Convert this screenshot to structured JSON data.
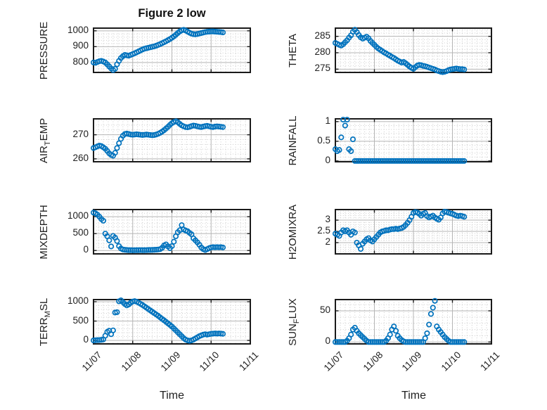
{
  "title": "Figure 2 low",
  "xlabel": "Time",
  "colors": {
    "marker": "#0072BD",
    "grid_major": "#b5b5b5",
    "grid_minor": "#cccccc",
    "axis": "#1a1a1a",
    "text": "#212121"
  },
  "chart_data": [
    {
      "type": "scatter",
      "name": "pressure",
      "marker": "open-circle",
      "ylabel_pre": "PRESSURE",
      "ylabel_sub": "",
      "ylabel_post": "",
      "ylim": [
        737,
        1017
      ],
      "yticks": [
        800,
        900,
        1000
      ],
      "minor_y_step": 20,
      "xlim": [
        0,
        4
      ],
      "xticks": [
        0,
        1,
        2,
        3,
        4
      ],
      "minor_x_step": 0.125,
      "xtick_labels": [
        "11/07",
        "11/08",
        "11/09",
        "11/10",
        "11/11"
      ],
      "show_x_tick_labels": false,
      "x": {
        "t0": 0,
        "dt": 0.05
      },
      "values": [
        800,
        798,
        803,
        808,
        810,
        806,
        800,
        788,
        775,
        762,
        752,
        760,
        788,
        810,
        828,
        840,
        848,
        845,
        843,
        848,
        853,
        858,
        864,
        870,
        876,
        882,
        887,
        890,
        893,
        896,
        899,
        902,
        906,
        911,
        916,
        922,
        928,
        934,
        941,
        948,
        956,
        965,
        975,
        986,
        996,
        1003,
        1006,
        1002,
        995,
        988,
        982,
        979,
        978,
        980,
        983,
        986,
        989,
        992,
        994,
        995,
        996,
        996,
        995,
        994,
        993,
        992,
        990
      ]
    },
    {
      "type": "scatter",
      "name": "theta",
      "marker": "open-circle",
      "ylabel_pre": "THETA",
      "ylabel_sub": "",
      "ylabel_post": "",
      "ylim": [
        274,
        287.5
      ],
      "yticks": [
        275,
        280,
        285
      ],
      "minor_y_step": 1,
      "xlim": [
        0,
        4
      ],
      "xticks": [
        0,
        1,
        2,
        3,
        4
      ],
      "minor_x_step": 0.125,
      "xtick_labels": [
        "11/07",
        "11/08",
        "11/09",
        "11/10",
        "11/11"
      ],
      "show_x_tick_labels": false,
      "x": {
        "t0": 0,
        "dt": 0.05
      },
      "values": [
        283,
        282.7,
        282.4,
        282.2,
        282.6,
        283.2,
        283.8,
        284.6,
        285.3,
        286.4,
        287,
        286.3,
        285.4,
        284.7,
        284.3,
        284.6,
        284.9,
        284.4,
        283.6,
        283,
        282.4,
        281.8,
        281.3,
        280.9,
        280.5,
        280.1,
        279.8,
        279.4,
        279.1,
        278.7,
        278.4,
        278,
        277.6,
        277.3,
        277,
        277.2,
        276.8,
        276.3,
        275.8,
        275.4,
        275.1,
        275.6,
        276.1,
        276.3,
        276.2,
        276,
        275.9,
        275.7,
        275.5,
        275.3,
        275.1,
        274.9,
        274.6,
        274.4,
        274.2,
        274.1,
        274.2,
        274.4,
        274.7,
        274.9,
        275,
        275.1,
        275.2,
        275.1,
        275,
        275,
        274.9
      ]
    },
    {
      "type": "scatter",
      "name": "air-temp",
      "marker": "open-circle",
      "ylabel_pre": "AIR",
      "ylabel_sub": "T",
      "ylabel_post": "EMP",
      "ylim": [
        258.8,
        276.6
      ],
      "yticks": [
        260,
        270
      ],
      "minor_y_step": 2,
      "xlim": [
        0,
        4
      ],
      "xticks": [
        0,
        1,
        2,
        3,
        4
      ],
      "minor_x_step": 0.125,
      "xtick_labels": [
        "11/07",
        "11/08",
        "11/09",
        "11/10",
        "11/11"
      ],
      "show_x_tick_labels": false,
      "x": {
        "t0": 0,
        "dt": 0.05
      },
      "values": [
        264.5,
        264.8,
        265.2,
        265.5,
        265.3,
        264.8,
        264.2,
        263.3,
        262.3,
        261.6,
        261.3,
        262.5,
        264.5,
        266.5,
        268.3,
        269.6,
        270.3,
        270.5,
        270.3,
        270.1,
        270,
        270.1,
        270.2,
        270.1,
        270,
        269.9,
        270,
        270.1,
        270,
        269.9,
        269.8,
        269.9,
        270.1,
        270.4,
        270.8,
        271.3,
        271.9,
        272.6,
        273.3,
        274.1,
        274.8,
        275.3,
        275.6,
        275.2,
        274.5,
        273.9,
        273.5,
        273.2,
        273.1,
        273.3,
        273.6,
        273.8,
        273.7,
        273.5,
        273.3,
        273.2,
        273.4,
        273.6,
        273.7,
        273.5,
        273.3,
        273.2,
        273.4,
        273.5,
        273.4,
        273.3,
        273.2
      ]
    },
    {
      "type": "scatter",
      "name": "rainfall",
      "marker": "open-circle",
      "ylabel_pre": "RAINFALL",
      "ylabel_sub": "",
      "ylabel_post": "",
      "ylim": [
        -0.02,
        1.07
      ],
      "yticks": [
        0,
        0.5,
        1
      ],
      "minor_y_step": 0.1,
      "xlim": [
        0,
        4
      ],
      "xticks": [
        0,
        1,
        2,
        3,
        4
      ],
      "minor_x_step": 0.125,
      "xtick_labels": [
        "11/07",
        "11/08",
        "11/09",
        "11/10",
        "11/11"
      ],
      "show_x_tick_labels": false,
      "x": {
        "t0": 0,
        "dt": 0.05
      },
      "values": [
        0.3,
        0.25,
        0.28,
        0.6,
        1.05,
        0.9,
        1.05,
        0.3,
        0.25,
        0.55,
        0,
        0,
        0,
        0,
        0,
        0,
        0,
        0,
        0,
        0,
        0,
        0,
        0,
        0,
        0,
        0,
        0,
        0,
        0,
        0,
        0,
        0,
        0,
        0,
        0,
        0,
        0,
        0,
        0,
        0,
        0,
        0,
        0,
        0,
        0,
        0,
        0,
        0,
        0,
        0,
        0,
        0,
        0,
        0,
        0,
        0,
        0,
        0,
        0,
        0,
        0,
        0,
        0,
        0,
        0,
        0,
        0
      ]
    },
    {
      "type": "scatter",
      "name": "mixdepth",
      "marker": "open-circle",
      "ylabel_pre": "MIXDEPTH",
      "ylabel_sub": "",
      "ylabel_post": "",
      "ylim": [
        -100,
        1210
      ],
      "yticks": [
        0,
        500,
        1000
      ],
      "minor_y_step": 100,
      "xlim": [
        0,
        4
      ],
      "xticks": [
        0,
        1,
        2,
        3,
        4
      ],
      "minor_x_step": 0.125,
      "xtick_labels": [
        "11/07",
        "11/08",
        "11/09",
        "11/10",
        "11/11"
      ],
      "show_x_tick_labels": false,
      "x": {
        "t0": 0,
        "dt": 0.05
      },
      "values": [
        1120,
        1100,
        1060,
        1000,
        930,
        880,
        500,
        420,
        300,
        120,
        430,
        380,
        280,
        130,
        60,
        30,
        20,
        15,
        10,
        10,
        8,
        8,
        10,
        10,
        12,
        10,
        10,
        12,
        15,
        15,
        18,
        20,
        25,
        30,
        40,
        80,
        150,
        180,
        120,
        70,
        130,
        260,
        420,
        540,
        600,
        750,
        620,
        590,
        570,
        520,
        480,
        360,
        300,
        240,
        170,
        90,
        40,
        15,
        40,
        70,
        90,
        100,
        95,
        100,
        95,
        100,
        90
      ]
    },
    {
      "type": "scatter",
      "name": "h2omixra",
      "marker": "open-circle",
      "ylabel_pre": "H2OMIXRA",
      "ylabel_sub": "",
      "ylabel_post": "",
      "ylim": [
        1.5,
        3.47
      ],
      "yticks": [
        2,
        2.5,
        3
      ],
      "minor_y_step": 0.1,
      "xlim": [
        0,
        4
      ],
      "xticks": [
        0,
        1,
        2,
        3,
        4
      ],
      "minor_x_step": 0.125,
      "xtick_labels": [
        "11/07",
        "11/08",
        "11/09",
        "11/10",
        "11/11"
      ],
      "show_x_tick_labels": false,
      "x": {
        "t0": 0,
        "dt": 0.05
      },
      "values": [
        2.4,
        2.35,
        2.3,
        2.45,
        2.55,
        2.5,
        2.55,
        2.45,
        2.35,
        2.5,
        2.45,
        2.0,
        1.88,
        1.72,
        1.95,
        2.05,
        2.15,
        2.2,
        2.1,
        2.05,
        2.15,
        2.25,
        2.35,
        2.45,
        2.5,
        2.52,
        2.55,
        2.55,
        2.58,
        2.6,
        2.6,
        2.62,
        2.6,
        2.63,
        2.65,
        2.7,
        2.78,
        2.88,
        3.0,
        3.15,
        3.32,
        3.36,
        3.34,
        3.28,
        3.2,
        3.28,
        3.32,
        3.18,
        3.12,
        3.16,
        3.2,
        3.12,
        3.06,
        3.02,
        3.12,
        3.3,
        3.38,
        3.36,
        3.33,
        3.3,
        3.28,
        3.24,
        3.2,
        3.18,
        3.2,
        3.18,
        3.15
      ]
    },
    {
      "type": "scatter",
      "name": "terr-msl",
      "marker": "open-circle",
      "ylabel_pre": "TERR",
      "ylabel_sub": "M",
      "ylabel_post": "SL",
      "ylim": [
        -90,
        1055
      ],
      "yticks": [
        0,
        500,
        1000
      ],
      "minor_y_step": 100,
      "xlim": [
        0,
        4
      ],
      "xticks": [
        0,
        1,
        2,
        3,
        4
      ],
      "minor_x_step": 0.125,
      "xtick_labels": [
        "11/07",
        "11/08",
        "11/09",
        "11/10",
        "11/11"
      ],
      "show_x_tick_labels": true,
      "x": {
        "t0": 0,
        "dt": 0.05
      },
      "values": [
        0,
        5,
        8,
        10,
        15,
        25,
        120,
        220,
        250,
        160,
        260,
        720,
        730,
        1010,
        1035,
        990,
        940,
        905,
        930,
        975,
        1005,
        1015,
        1000,
        975,
        945,
        915,
        880,
        845,
        810,
        775,
        740,
        705,
        670,
        635,
        595,
        555,
        520,
        480,
        440,
        400,
        360,
        310,
        260,
        210,
        160,
        110,
        60,
        20,
        0,
        -10,
        0,
        20,
        50,
        80,
        110,
        130,
        150,
        160,
        150,
        160,
        170,
        175,
        180,
        175,
        180,
        175,
        170
      ]
    },
    {
      "type": "scatter",
      "name": "sun-flux",
      "marker": "open-circle",
      "ylabel_pre": "SUN",
      "ylabel_sub": "F",
      "ylabel_post": "LUX",
      "ylim": [
        -3,
        68
      ],
      "yticks": [
        0,
        50
      ],
      "minor_y_step": 10,
      "xlim": [
        0,
        4
      ],
      "xticks": [
        0,
        1,
        2,
        3,
        4
      ],
      "minor_x_step": 0.125,
      "xtick_labels": [
        "11/07",
        "11/08",
        "11/09",
        "11/10",
        "11/11"
      ],
      "show_x_tick_labels": true,
      "x": {
        "t0": 0,
        "dt": 0.05
      },
      "values": [
        0,
        0,
        0,
        0,
        0,
        0,
        2,
        6,
        12,
        20,
        23,
        18,
        14,
        11,
        8,
        5,
        2,
        0,
        0,
        0,
        0,
        0,
        0,
        0,
        0,
        0,
        2,
        6,
        12,
        20,
        25,
        18,
        10,
        6,
        3,
        1,
        0,
        0,
        0,
        0,
        0,
        0,
        0,
        0,
        0,
        0,
        6,
        14,
        28,
        45,
        55,
        66,
        25,
        20,
        16,
        12,
        8,
        5,
        2,
        0,
        0,
        0,
        0,
        0,
        0,
        0,
        0
      ]
    }
  ]
}
